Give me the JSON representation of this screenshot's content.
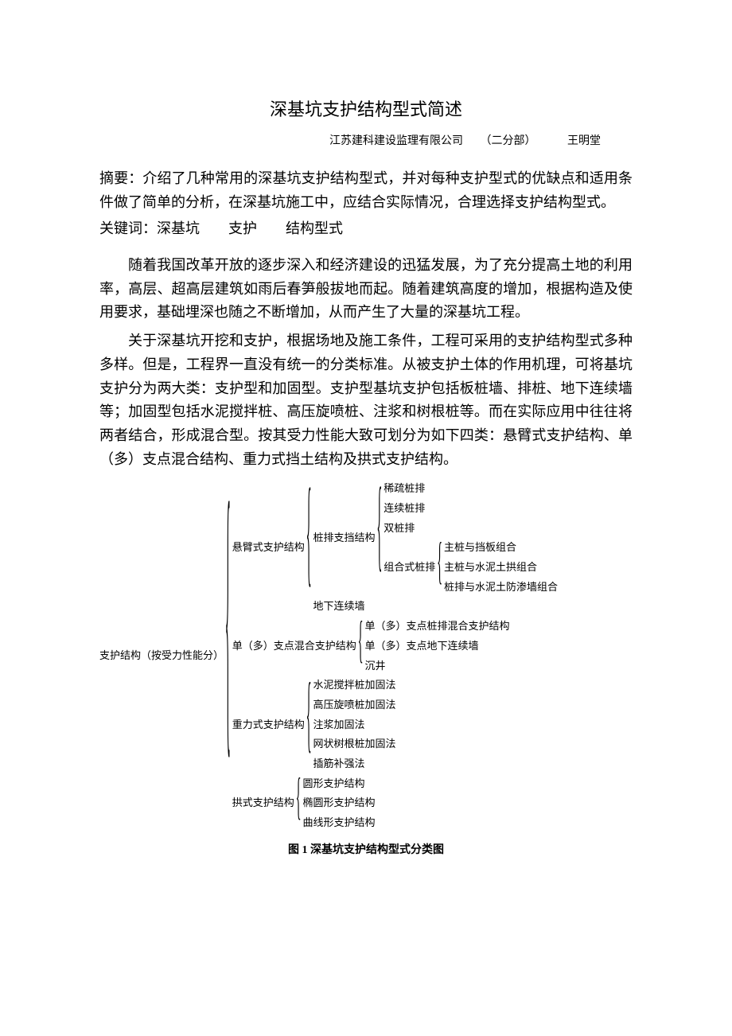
{
  "title": "深基坑支护结构型式简述",
  "subtitle": {
    "company": "江苏建科建设监理有限公司",
    "dept": "（二分部）",
    "author": "王明堂"
  },
  "abstract_label": "摘要：",
  "abstract_text": "介绍了几种常用的深基坑支护结构型式，并对每种支护型式的优缺点和适用条件做了简单的分析，在深基坑施工中，应结合实际情况，合理选择支护结构型式。",
  "keywords_label": "关键词：",
  "keywords": [
    "深基坑",
    "支护",
    "结构型式"
  ],
  "paragraphs": [
    "随着我国改革开放的逐步深入和经济建设的迅猛发展，为了充分提高土地的利用率，高层、超高层建筑如雨后春笋般拔地而起。随着建筑高度的增加，根据构造及使用要求，基础埋深也随之不断增加，从而产生了大量的深基坑工程。",
    "关于深基坑开挖和支护，根据场地及施工条件，工程可采用的支护结构型式多种多样。但是，工程界一直没有统一的分类标准。从被支护土体的作用机理，可将基坑支护分为两大类：支护型和加固型。支护型基坑支护包括板桩墙、排桩、地下连续墙等；加固型包括水泥搅拌桩、高压旋喷桩、注浆和树根桩等。而在实际应用中往往将两者结合，形成混合型。按其受力性能大致可划分为如下四类：悬臂式支护结构、单（多）支点混合结构、重力式挡土结构及拱式支护结构。"
  ],
  "figure_caption": "图 1  深基坑支护结构型式分类图",
  "tree": {
    "root": "支护结构（按受力性能分）",
    "level1": [
      {
        "label": "悬臂式支护结构",
        "children": [
          {
            "label": "桩排支挡结构",
            "children": [
              {
                "label": "稀疏桩排"
              },
              {
                "label": "连续桩排"
              },
              {
                "label": "双桩排"
              },
              {
                "label": "组合式桩排",
                "children": [
                  {
                    "label": "主桩与挡板组合"
                  },
                  {
                    "label": "主桩与水泥土拱组合"
                  },
                  {
                    "label": "桩排与水泥土防渗墙组合"
                  }
                ]
              }
            ]
          },
          {
            "label": "地下连续墙"
          }
        ]
      },
      {
        "label": "单（多）支点混合支护结构",
        "children": [
          {
            "label": "单（多）支点桩排混合支护结构"
          },
          {
            "label": "单（多）支点地下连续墙"
          },
          {
            "label": "沉井"
          }
        ]
      },
      {
        "label": "重力式支护结构",
        "children": [
          {
            "label": "水泥搅拌桩加固法"
          },
          {
            "label": "高压旋喷桩加固法"
          },
          {
            "label": "注浆加固法"
          },
          {
            "label": "网状树根桩加固法"
          },
          {
            "label": "插筋补强法"
          }
        ]
      },
      {
        "label": "拱式支护结构",
        "children": [
          {
            "label": "圆形支护结构"
          },
          {
            "label": "椭圆形支护结构"
          },
          {
            "label": "曲线形支护结构"
          }
        ]
      }
    ]
  }
}
